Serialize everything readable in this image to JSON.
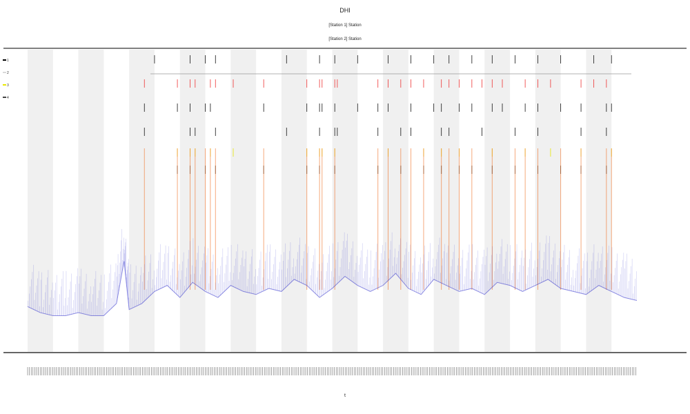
{
  "chart_data": {
    "type": "line",
    "title": "DHI",
    "subtitle_lines": [
      "[Station 1] Station",
      "[Station 2] Station"
    ],
    "xlabel": "t",
    "ylabel": "",
    "legend": {
      "position": "top-left",
      "entries": [
        {
          "label": "1",
          "color": "#000000"
        },
        {
          "label": "2",
          "color": "#d9d9d9"
        },
        {
          "label": "3",
          "color": "#e8e800"
        },
        {
          "label": "4",
          "color": "#444444"
        }
      ]
    },
    "colors": {
      "trace": "#3333cc",
      "events_orange": "#f07830",
      "events_red": "#ee3333",
      "events_yellow": "#e6e600",
      "events_black": "#111111",
      "band": "#f0f0f0",
      "axis": "#555555"
    },
    "x_range": [
      0,
      24
    ],
    "y_range": [
      0,
      1
    ],
    "shaded_bands": [
      0,
      2,
      4,
      6,
      8,
      10,
      12,
      14,
      16,
      18,
      20,
      22
    ],
    "series": [
      {
        "name": "",
        "x": [
          0,
          0.5,
          1,
          1.5,
          2,
          2.5,
          3,
          3.5,
          3.8,
          4,
          4.5,
          5,
          5.5,
          6,
          6.5,
          7,
          7.5,
          8,
          8.5,
          9,
          9.5,
          10,
          10.5,
          11,
          11.5,
          12,
          12.5,
          13,
          13.5,
          14,
          14.5,
          15,
          15.5,
          16,
          16.5,
          17,
          17.5,
          18,
          18.5,
          19,
          19.5,
          20,
          20.5,
          21,
          21.5,
          22,
          22.5,
          23,
          23.5,
          24
        ],
        "y": [
          0.15,
          0.13,
          0.12,
          0.12,
          0.13,
          0.12,
          0.12,
          0.16,
          0.3,
          0.14,
          0.16,
          0.2,
          0.22,
          0.18,
          0.23,
          0.2,
          0.18,
          0.22,
          0.2,
          0.19,
          0.21,
          0.2,
          0.24,
          0.22,
          0.18,
          0.21,
          0.25,
          0.22,
          0.2,
          0.22,
          0.26,
          0.21,
          0.19,
          0.24,
          0.22,
          0.2,
          0.21,
          0.19,
          0.23,
          0.22,
          0.2,
          0.22,
          0.24,
          0.21,
          0.2,
          0.19,
          0.22,
          0.2,
          0.18,
          0.17
        ]
      }
    ],
    "events": [
      {
        "x": 4.6,
        "rows": [
          1,
          2,
          3
        ]
      },
      {
        "x": 5.0,
        "rows": [
          0
        ]
      },
      {
        "x": 5.9,
        "rows": [
          1,
          2,
          4,
          5
        ]
      },
      {
        "x": 6.4,
        "rows": [
          0,
          1,
          2,
          3,
          4,
          5
        ]
      },
      {
        "x": 6.6,
        "rows": [
          1,
          3,
          4
        ]
      },
      {
        "x": 7.0,
        "rows": [
          0,
          2,
          5
        ]
      },
      {
        "x": 7.2,
        "rows": [
          1,
          2,
          4
        ]
      },
      {
        "x": 7.4,
        "rows": [
          0,
          1,
          3,
          5
        ]
      },
      {
        "x": 8.1,
        "rows": [
          1,
          4
        ]
      },
      {
        "x": 9.3,
        "rows": [
          1,
          2,
          5
        ]
      },
      {
        "x": 10.2,
        "rows": [
          0,
          3
        ]
      },
      {
        "x": 11.0,
        "rows": [
          1,
          2,
          4,
          5
        ]
      },
      {
        "x": 11.5,
        "rows": [
          0,
          1,
          2,
          3,
          4,
          5
        ]
      },
      {
        "x": 11.6,
        "rows": [
          1,
          2,
          4
        ]
      },
      {
        "x": 12.1,
        "rows": [
          0,
          1,
          2,
          3,
          4,
          5
        ]
      },
      {
        "x": 12.2,
        "rows": [
          1,
          3
        ]
      },
      {
        "x": 13.0,
        "rows": [
          0,
          2
        ]
      },
      {
        "x": 13.8,
        "rows": [
          1,
          2,
          3,
          5
        ]
      },
      {
        "x": 14.2,
        "rows": [
          0,
          1,
          2,
          4
        ]
      },
      {
        "x": 14.7,
        "rows": [
          1,
          3,
          5
        ]
      },
      {
        "x": 15.1,
        "rows": [
          0,
          1,
          2,
          3
        ]
      },
      {
        "x": 15.6,
        "rows": [
          1,
          4,
          5
        ]
      },
      {
        "x": 16.0,
        "rows": [
          0,
          2
        ]
      },
      {
        "x": 16.3,
        "rows": [
          1,
          2,
          3,
          4,
          5
        ]
      },
      {
        "x": 16.6,
        "rows": [
          0,
          1,
          3
        ]
      },
      {
        "x": 17.0,
        "rows": [
          1,
          2,
          4,
          5
        ]
      },
      {
        "x": 17.5,
        "rows": [
          0,
          1,
          2,
          5
        ]
      },
      {
        "x": 17.9,
        "rows": [
          1,
          3
        ]
      },
      {
        "x": 18.3,
        "rows": [
          0,
          1,
          2,
          4,
          5
        ]
      },
      {
        "x": 18.7,
        "rows": [
          1,
          2
        ]
      },
      {
        "x": 19.2,
        "rows": [
          0,
          3,
          5
        ]
      },
      {
        "x": 19.6,
        "rows": [
          1,
          2,
          4
        ]
      },
      {
        "x": 20.1,
        "rows": [
          0,
          1,
          2,
          3,
          5
        ]
      },
      {
        "x": 20.6,
        "rows": [
          1,
          4
        ]
      },
      {
        "x": 21.0,
        "rows": [
          0,
          2,
          5
        ]
      },
      {
        "x": 21.8,
        "rows": [
          1,
          2,
          3,
          4,
          5
        ]
      },
      {
        "x": 22.3,
        "rows": [
          0,
          1
        ]
      },
      {
        "x": 22.8,
        "rows": [
          1,
          2,
          3,
          5
        ]
      },
      {
        "x": 23.0,
        "rows": [
          0,
          2,
          4
        ]
      }
    ]
  }
}
